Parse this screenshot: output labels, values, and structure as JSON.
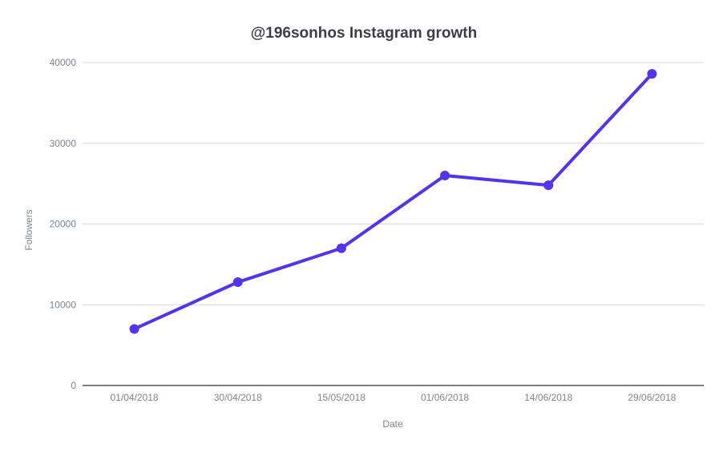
{
  "chart_data": {
    "type": "line",
    "title": "@196sonhos Instagram growth",
    "xlabel": "Date",
    "ylabel": "Followers",
    "categories": [
      "01/04/2018",
      "30/04/2018",
      "15/05/2018",
      "01/06/2018",
      "14/06/2018",
      "29/06/2018"
    ],
    "series": [
      {
        "values": [
          7000,
          12800,
          17000,
          26000,
          24800,
          38600
        ]
      }
    ],
    "ylim": [
      0,
      40000
    ],
    "yticks": [
      0,
      10000,
      20000,
      30000,
      40000
    ],
    "grid": true,
    "legend": "none",
    "colors": {
      "line": "#5533ee",
      "grid": "#d8d8e2",
      "baseline": "#333333",
      "text": "#7d8494",
      "title": "#3d3d4a"
    }
  }
}
